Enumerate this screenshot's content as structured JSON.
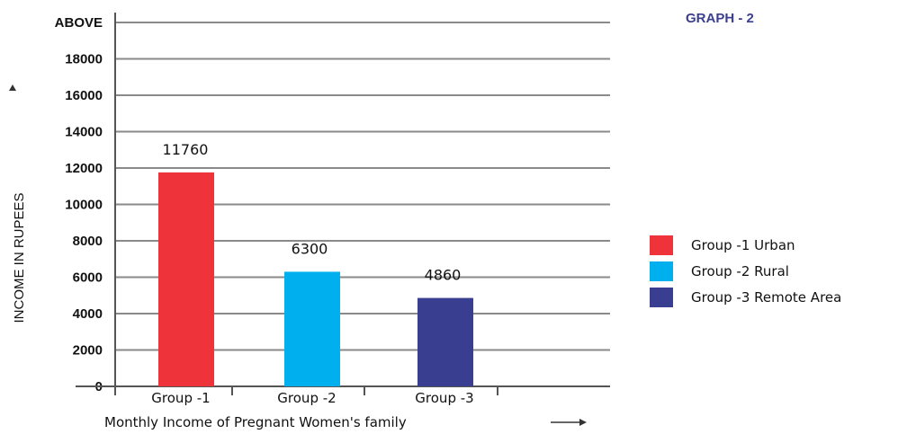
{
  "graph_label": "GRAPH - 2",
  "chart_data": {
    "type": "bar",
    "categories": [
      "Group -1",
      "Group -2",
      "Group -3"
    ],
    "values": [
      11760,
      6300,
      4860
    ],
    "data_labels": [
      "11760",
      "6300",
      "4860"
    ],
    "colors": [
      "#ee333b",
      "#00b0ee",
      "#3a3e90"
    ],
    "ylabel": "INCOME IN RUPEES",
    "xlabel": "Monthly Income of Pregnant Women's family",
    "ytick_labels": [
      "0",
      "2000",
      "4000",
      "6000",
      "8000",
      "10000",
      "12000",
      "14000",
      "16000",
      "18000",
      "ABOVE"
    ],
    "ylim": [
      0,
      20000
    ],
    "grid": true,
    "legend_position": "right",
    "legend": [
      {
        "label": "Group -1 Urban",
        "color": "#ee333b"
      },
      {
        "label": "Group -2 Rural",
        "color": "#00b0ee"
      },
      {
        "label": "Group -3 Remote Area",
        "color": "#3a3e90"
      }
    ]
  }
}
